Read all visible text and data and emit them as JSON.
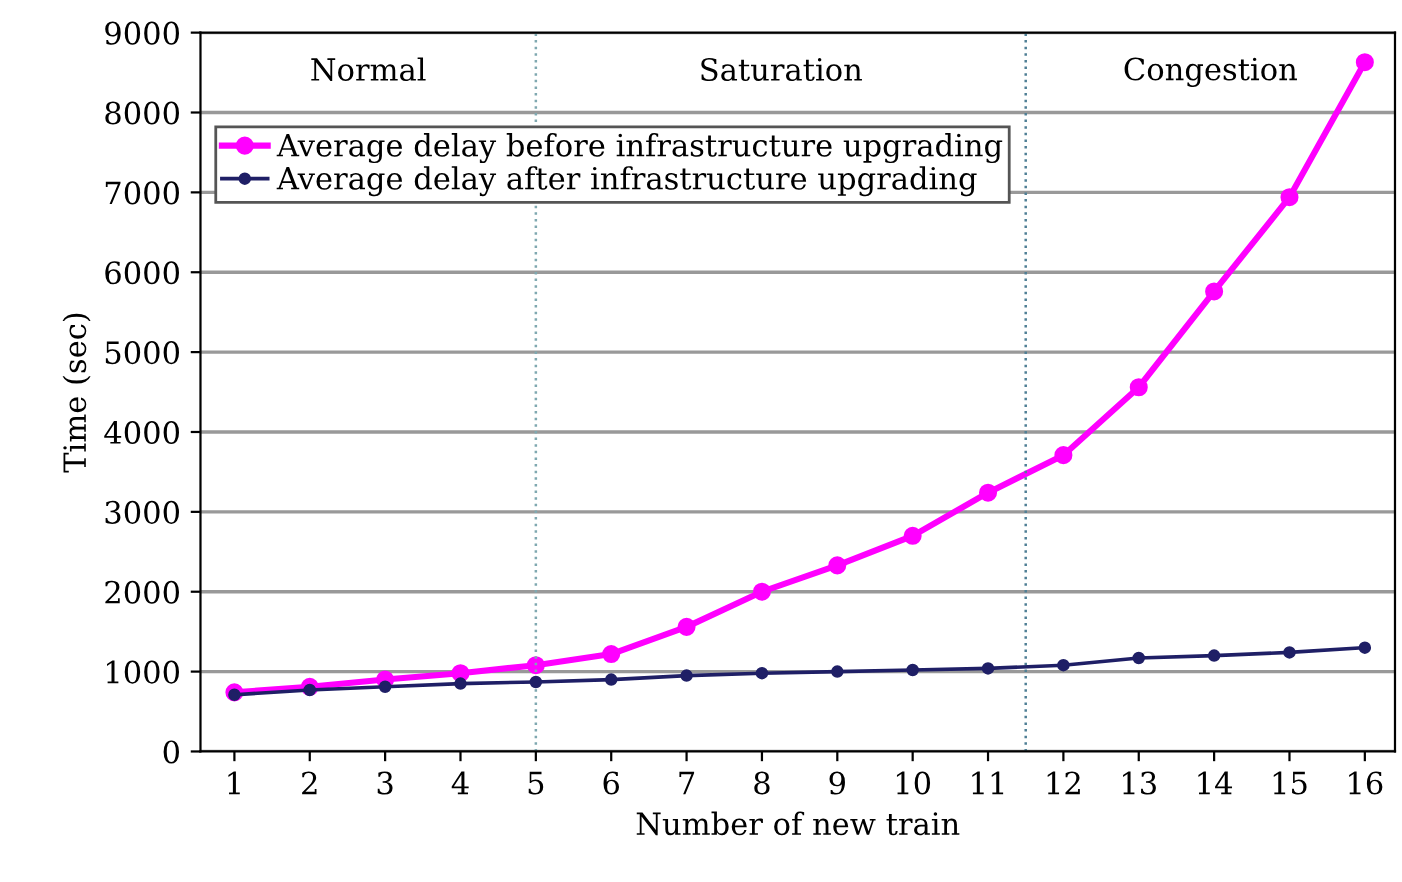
{
  "chart_data": {
    "type": "line",
    "xlabel": "Number of new train",
    "ylabel": "Time (sec)",
    "x": [
      1,
      2,
      3,
      4,
      5,
      6,
      7,
      8,
      9,
      10,
      11,
      12,
      13,
      14,
      15,
      16
    ],
    "series": [
      {
        "name": "Average delay before infrastructure upgrading",
        "color": "#ff00ff",
        "values": [
          740,
          810,
          900,
          980,
          1080,
          1220,
          1560,
          2000,
          2330,
          2700,
          3240,
          3710,
          4560,
          5760,
          6940,
          8630
        ]
      },
      {
        "name": "Average delay after infrastructure upgrading",
        "color": "#1f1f66",
        "values": [
          710,
          770,
          810,
          850,
          870,
          900,
          950,
          980,
          1000,
          1020,
          1040,
          1080,
          1170,
          1200,
          1240,
          1300
        ]
      }
    ],
    "xlim": [
      0.55,
      16.4
    ],
    "xticks": [
      1,
      2,
      3,
      4,
      5,
      6,
      7,
      8,
      9,
      10,
      11,
      12,
      13,
      14,
      15,
      16
    ],
    "ylim": [
      0,
      9000
    ],
    "yticks": [
      0,
      1000,
      2000,
      3000,
      4000,
      5000,
      6000,
      7000,
      8000,
      9000
    ],
    "ref_lines": [
      {
        "axis": "x",
        "value": 5,
        "color": "#7fa8b0",
        "line_style": "dotted"
      },
      {
        "axis": "x",
        "value": 11.5,
        "color": "#4f7f95",
        "line_style": "dotted"
      }
    ],
    "annotations": [
      "Normal",
      "Saturation",
      "Congestion"
    ],
    "grid": "y",
    "legend": "top left",
    "marker": "circle",
    "line_style": "solid"
  }
}
